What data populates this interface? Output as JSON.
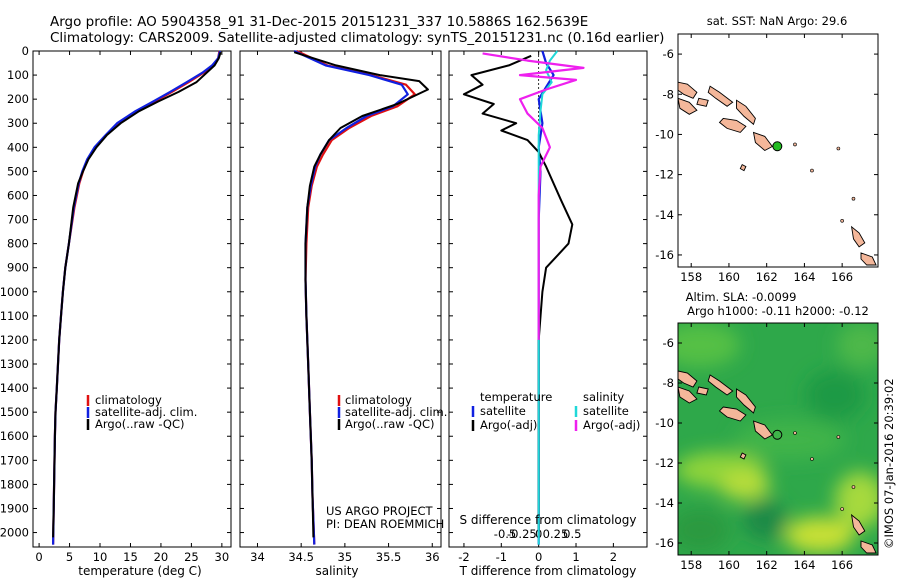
{
  "header": {
    "line1": "Argo profile: AO 5904358_91 31-Dec-2015 20151231_337 10.5886S 162.5639E",
    "line2": "Climatology: CARS2009. Satellite-adjusted climatology: synTS_20151231.nc (0.16d earlier)"
  },
  "side_label": "©IMOS 07-Jan-2016 20:39:02",
  "colors": {
    "climatology": "#e01010",
    "satellite": "#1020e0",
    "argo": "#000000",
    "sal_satellite": "#20d8d8",
    "sal_argo": "#ee20ee",
    "land": "#f4b79a",
    "float_marker": "#22bb22"
  },
  "chart_data": [
    {
      "id": "temperature",
      "type": "line",
      "xlabel": "temperature (deg C)",
      "ylabel": "",
      "xlim": [
        -1,
        31.5
      ],
      "ylim": [
        2060,
        0
      ],
      "xticks": [
        0,
        5,
        10,
        15,
        20,
        25,
        30
      ],
      "xtick_labels": [
        "0",
        "5",
        "10",
        "15",
        "20",
        "25",
        "30"
      ],
      "yticks": [
        0,
        100,
        200,
        300,
        400,
        500,
        600,
        700,
        800,
        900,
        1000,
        1100,
        1200,
        1300,
        1400,
        1500,
        1600,
        1700,
        1800,
        1900,
        2000
      ],
      "ytick_labels": [
        "0",
        "100",
        "200",
        "300",
        "400",
        "500",
        "600",
        "700",
        "800",
        "900",
        "1000",
        "1100",
        "1200",
        "1300",
        "1400",
        "1500",
        "1600",
        "1700",
        "1800",
        "1900",
        "2000"
      ],
      "legend": [
        "climatology",
        "satellite-adj. clim.",
        "Argo(..raw -QC)"
      ],
      "series": [
        {
          "name": "climatology",
          "color_key": "climatology",
          "x": [
            29.6,
            29.4,
            28.6,
            27.0,
            24.5,
            21.8,
            19.0,
            16.0,
            13.0,
            11.0,
            9.2,
            8.0,
            7.2,
            6.6,
            5.8,
            4.9,
            4.3,
            3.9,
            3.6,
            3.3,
            3.1,
            2.9,
            2.7,
            2.6,
            2.5,
            2.4,
            2.3
          ],
          "y": [
            0,
            30,
            60,
            90,
            130,
            170,
            210,
            250,
            300,
            350,
            400,
            450,
            500,
            550,
            650,
            800,
            900,
            1000,
            1100,
            1200,
            1300,
            1400,
            1500,
            1600,
            1750,
            1900,
            2050
          ]
        },
        {
          "name": "satellite-adj. clim.",
          "color_key": "satellite",
          "x": [
            29.7,
            29.4,
            28.4,
            26.8,
            24.2,
            21.5,
            18.7,
            15.8,
            12.8,
            10.9,
            9.1,
            7.9,
            7.1,
            6.5,
            5.7,
            4.9,
            4.3,
            3.9,
            3.6,
            3.3,
            3.1,
            2.9,
            2.7,
            2.6,
            2.5,
            2.4,
            2.3
          ],
          "y": [
            0,
            30,
            60,
            90,
            130,
            170,
            210,
            250,
            300,
            350,
            400,
            450,
            500,
            550,
            650,
            800,
            900,
            1000,
            1100,
            1200,
            1300,
            1400,
            1500,
            1600,
            1750,
            1900,
            2050
          ]
        },
        {
          "name": "Argo(..raw -QC)",
          "color_key": "argo",
          "x": [
            29.8,
            29.5,
            28.8,
            27.5,
            25.8,
            22.9,
            19.5,
            16.4,
            13.4,
            11.1,
            9.4,
            8.1,
            7.2,
            6.4,
            5.6,
            4.9,
            4.3,
            3.9,
            3.6,
            3.3,
            3.1,
            2.9,
            2.7,
            2.6,
            2.5,
            2.4,
            2.3
          ],
          "y": [
            5,
            30,
            60,
            90,
            130,
            170,
            210,
            250,
            300,
            350,
            400,
            450,
            500,
            550,
            650,
            800,
            900,
            1000,
            1100,
            1200,
            1300,
            1400,
            1500,
            1600,
            1750,
            1900,
            2020
          ]
        }
      ]
    },
    {
      "id": "salinity",
      "type": "line",
      "xlabel": "salinity",
      "ylabel": "",
      "xlim": [
        33.8,
        36.1
      ],
      "ylim": [
        2060,
        0
      ],
      "xticks": [
        34,
        34.5,
        35,
        35.5,
        36
      ],
      "xtick_labels": [
        "34",
        "34.5",
        "35",
        "35.5",
        "36"
      ],
      "legend": [
        "climatology",
        "satellite-adj. clim.",
        "Argo(..raw -QC)"
      ],
      "annotation": [
        "US ARGO PROJECT",
        "PI: DEAN ROEMMICH"
      ],
      "series": [
        {
          "name": "climatology",
          "color_key": "climatology",
          "x": [
            34.45,
            34.8,
            35.3,
            35.7,
            35.8,
            35.6,
            35.3,
            35.05,
            34.85,
            34.75,
            34.68,
            34.62,
            34.58,
            34.56,
            34.55,
            34.56,
            34.58,
            34.6,
            34.62,
            34.63,
            34.64,
            34.65
          ],
          "y": [
            0,
            60,
            100,
            140,
            180,
            230,
            270,
            320,
            370,
            430,
            480,
            560,
            650,
            800,
            950,
            1100,
            1300,
            1500,
            1700,
            1850,
            1950,
            2050
          ]
        },
        {
          "name": "satellite-adj. clim.",
          "color_key": "satellite",
          "x": [
            34.42,
            34.78,
            35.28,
            35.65,
            35.72,
            35.55,
            35.25,
            35.02,
            34.82,
            34.72,
            34.66,
            34.61,
            34.57,
            34.55,
            34.55,
            34.56,
            34.58,
            34.6,
            34.62,
            34.63,
            34.64,
            34.65
          ],
          "y": [
            0,
            60,
            100,
            140,
            180,
            230,
            270,
            320,
            370,
            430,
            480,
            560,
            650,
            800,
            950,
            1100,
            1300,
            1500,
            1700,
            1850,
            1950,
            2050
          ]
        },
        {
          "name": "Argo(..raw -QC)",
          "color_key": "argo",
          "x": [
            34.42,
            34.9,
            35.4,
            35.85,
            35.95,
            35.6,
            35.2,
            34.95,
            34.82,
            34.72,
            34.65,
            34.6,
            34.57,
            34.55,
            34.55,
            34.56,
            34.58,
            34.6,
            34.62,
            34.63,
            34.64
          ],
          "y": [
            5,
            60,
            100,
            125,
            160,
            220,
            270,
            320,
            370,
            430,
            480,
            560,
            650,
            800,
            950,
            1100,
            1300,
            1500,
            1700,
            1850,
            2020
          ]
        }
      ]
    },
    {
      "id": "difference",
      "type": "line",
      "xlabel": "T difference from climatology",
      "xlabel_top": "S difference from climatology",
      "xlim": [
        -2.4,
        2.9
      ],
      "ylim": [
        2060,
        0
      ],
      "xticks": [
        -2,
        -1,
        0,
        1,
        2
      ],
      "xtick_labels": [
        "-2",
        "-1",
        "0",
        "1",
        "2"
      ],
      "sticks": [
        -0.5,
        -0.25,
        0,
        0.25,
        0.5
      ],
      "stick_labels": [
        "-0.5",
        "-0.25",
        "0",
        "0.25",
        "0.5"
      ],
      "legend_titles": [
        "temperature",
        "salinity"
      ],
      "legend_temperature": [
        "satellite",
        "Argo(-adj)"
      ],
      "legend_salinity": [
        "satellite",
        "Argo(-adj)"
      ],
      "series": [
        {
          "name": "temperature satellite",
          "color_key": "satellite",
          "x": [
            0.1,
            0.2,
            0.4,
            0.2,
            0.0,
            0.1,
            0.0,
            0.05,
            0.0,
            0.0,
            0.0,
            0.0,
            0.0,
            0.0,
            0.0
          ],
          "y": [
            0,
            50,
            100,
            150,
            200,
            300,
            400,
            500,
            700,
            900,
            1100,
            1300,
            1500,
            1800,
            2050
          ]
        },
        {
          "name": "temperature Argo(-adj)",
          "color_key": "argo",
          "x": [
            -0.2,
            -0.8,
            -1.8,
            -1.5,
            -2.0,
            -1.2,
            -1.5,
            -0.6,
            -1.0,
            -0.3,
            0.0,
            0.2,
            0.6,
            0.9,
            0.8,
            0.5,
            0.2,
            0.1,
            0.0,
            0.0,
            0.0,
            0.0
          ],
          "y": [
            20,
            60,
            100,
            140,
            180,
            220,
            260,
            300,
            330,
            370,
            420,
            480,
            620,
            720,
            800,
            850,
            900,
            1000,
            1200,
            1500,
            1800,
            2020
          ]
        },
        {
          "name": "salinity satellite",
          "color_key": "sal_satellite",
          "x": [
            0.5,
            0.3,
            0.2,
            0.35,
            0.1,
            0.05,
            0.0,
            0.0,
            0.0,
            0.0,
            0.0,
            0.0,
            0.0
          ],
          "y": [
            0,
            40,
            80,
            130,
            180,
            250,
            350,
            500,
            800,
            1100,
            1400,
            1800,
            2050
          ]
        },
        {
          "name": "salinity Argo(-adj)",
          "color_key": "sal_argo",
          "x": [
            -1.5,
            -0.3,
            1.2,
            -0.5,
            1.0,
            0.2,
            -0.5,
            -0.3,
            0.1,
            0.3,
            0.05,
            0.0,
            0.0,
            0.0
          ],
          "y": [
            10,
            40,
            70,
            100,
            120,
            160,
            200,
            260,
            320,
            400,
            480,
            600,
            900,
            1200
          ]
        }
      ]
    },
    {
      "id": "sst_map",
      "type": "map",
      "title": "sat. SST: NaN Argo: 29.6",
      "xlim": [
        157.3,
        167.9
      ],
      "ylim": [
        -16.6,
        -5.0
      ],
      "xticks": [
        158,
        160,
        162,
        164,
        166
      ],
      "xtick_labels": [
        "158",
        "160",
        "162",
        "164",
        "166"
      ],
      "yticks": [
        -6,
        -8,
        -10,
        -12,
        -14,
        -16
      ],
      "ytick_labels": [
        "-6",
        "-8",
        "-10",
        "-12",
        "-14",
        "-16"
      ],
      "float": {
        "lon": 162.5639,
        "lat": -10.5886
      }
    },
    {
      "id": "sla_map",
      "type": "heatmap",
      "title": "Altim. SLA: -0.0099",
      "subtitle": "Argo h1000: -0.11 h2000: -0.12",
      "xlim": [
        157.3,
        167.9
      ],
      "ylim": [
        -16.6,
        -5.0
      ],
      "xticks": [
        158,
        160,
        162,
        164,
        166
      ],
      "xtick_labels": [
        "158",
        "160",
        "162",
        "164",
        "166"
      ],
      "yticks": [
        -6,
        -8,
        -10,
        -12,
        -14,
        -16
      ],
      "ytick_labels": [
        "-6",
        "-8",
        "-10",
        "-12",
        "-14",
        "-16"
      ],
      "float": {
        "lon": 162.5639,
        "lat": -10.5886
      }
    }
  ]
}
